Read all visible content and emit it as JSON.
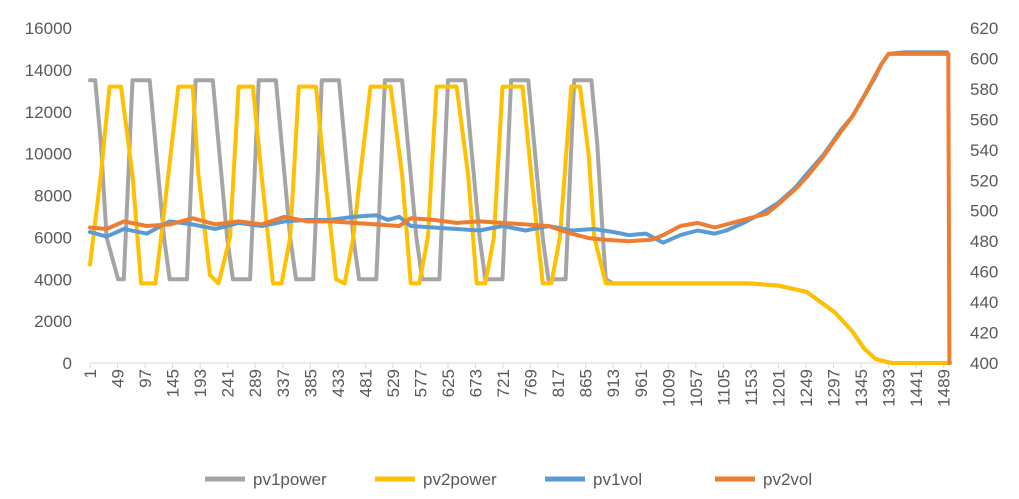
{
  "chart_data": {
    "type": "line",
    "title": "",
    "xlabel": "",
    "ylabel": "",
    "y2label": "",
    "ylim": [
      0,
      16000
    ],
    "y2lim": [
      400,
      620
    ],
    "xlim": [
      1,
      1500
    ],
    "yticks": [
      "0",
      "2000",
      "4000",
      "6000",
      "8000",
      "10000",
      "12000",
      "14000",
      "16000"
    ],
    "y2ticks": [
      "400",
      "420",
      "440",
      "460",
      "480",
      "500",
      "520",
      "540",
      "560",
      "580",
      "600",
      "620"
    ],
    "xticks": [
      "1",
      "49",
      "97",
      "145",
      "193",
      "241",
      "289",
      "337",
      "385",
      "433",
      "481",
      "529",
      "577",
      "625",
      "673",
      "721",
      "769",
      "817",
      "865",
      "913",
      "961",
      "1009",
      "1057",
      "1105",
      "1153",
      "1201",
      "1249",
      "1297",
      "1345",
      "1393",
      "1441",
      "1489"
    ],
    "legend_position": "bottom",
    "grid": false,
    "series": [
      {
        "name": "pv1power",
        "axis": "left",
        "color": "#a5a5a5",
        "x": [
          1,
          10,
          20,
          30,
          50,
          60,
          75,
          85,
          105,
          115,
          130,
          140,
          160,
          170,
          185,
          195,
          215,
          225,
          240,
          250,
          270,
          280,
          295,
          305,
          325,
          335,
          350,
          360,
          380,
          390,
          405,
          415,
          435,
          445,
          460,
          470,
          490,
          500,
          515,
          525,
          545,
          555,
          570,
          580,
          600,
          610,
          625,
          635,
          655,
          665,
          680,
          690,
          710,
          720,
          735,
          745,
          765,
          775,
          790,
          800,
          820,
          830,
          845,
          855,
          875,
          885,
          895,
          900,
          913,
          1150,
          1200,
          1250,
          1300,
          1330,
          1350,
          1370,
          1390,
          1400,
          1500
        ],
        "y": [
          13500,
          13500,
          10500,
          6000,
          4000,
          4000,
          13500,
          13500,
          13500,
          10500,
          6000,
          4000,
          4000,
          4000,
          13500,
          13500,
          13500,
          10500,
          6000,
          4000,
          4000,
          4000,
          13500,
          13500,
          13500,
          10500,
          6000,
          4000,
          4000,
          4000,
          13500,
          13500,
          13500,
          10500,
          6000,
          4000,
          4000,
          4000,
          13500,
          13500,
          13500,
          10500,
          6000,
          4000,
          4000,
          4000,
          13500,
          13500,
          13500,
          10500,
          6000,
          4000,
          4000,
          4000,
          13500,
          13500,
          13500,
          10500,
          6000,
          4000,
          4000,
          4000,
          13500,
          13500,
          13500,
          10500,
          6000,
          4000,
          3800,
          3800,
          3700,
          3400,
          2400,
          1500,
          700,
          200,
          50,
          0,
          0
        ]
      },
      {
        "name": "pv2power",
        "axis": "left",
        "color": "#ffc000",
        "x": [
          1,
          20,
          35,
          45,
          55,
          75,
          90,
          115,
          125,
          155,
          170,
          180,
          190,
          210,
          225,
          245,
          260,
          275,
          285,
          300,
          320,
          335,
          350,
          365,
          380,
          395,
          410,
          430,
          445,
          460,
          470,
          490,
          510,
          525,
          545,
          560,
          575,
          590,
          605,
          625,
          640,
          660,
          675,
          690,
          705,
          720,
          740,
          755,
          770,
          790,
          805,
          820,
          840,
          855,
          870,
          880,
          900,
          913,
          1150,
          1200,
          1250,
          1300,
          1330,
          1350,
          1370,
          1390,
          1400,
          1500
        ],
        "y": [
          4700,
          9000,
          13200,
          13200,
          13200,
          9000,
          3800,
          3800,
          6000,
          13200,
          13200,
          13200,
          9000,
          4200,
          3800,
          6000,
          13200,
          13200,
          13200,
          9000,
          3800,
          3800,
          6000,
          13200,
          13200,
          13200,
          9000,
          4000,
          3800,
          6000,
          8500,
          13200,
          13200,
          13200,
          9000,
          3800,
          3800,
          6000,
          13200,
          13200,
          13200,
          9000,
          3800,
          3800,
          6000,
          13200,
          13200,
          13200,
          9000,
          3800,
          3800,
          6000,
          13200,
          13200,
          10000,
          6000,
          3800,
          3800,
          3800,
          3700,
          3400,
          2400,
          1500,
          700,
          200,
          50,
          0,
          0
        ]
      },
      {
        "name": "pv1vol",
        "axis": "right",
        "color": "#5b9bd5",
        "x": [
          1,
          30,
          60,
          100,
          140,
          180,
          220,
          260,
          300,
          340,
          380,
          420,
          460,
          500,
          520,
          540,
          560,
          600,
          640,
          680,
          720,
          760,
          800,
          840,
          880,
          913,
          940,
          970,
          1000,
          1030,
          1060,
          1090,
          1110,
          1140,
          1170,
          1200,
          1230,
          1250,
          1280,
          1310,
          1330,
          1350,
          1370,
          1380,
          1393,
          1420,
          1450,
          1495
        ],
        "y": [
          486,
          483,
          488,
          485,
          493,
          491,
          488,
          492,
          490,
          493,
          494,
          494,
          496,
          497,
          494,
          496,
          490,
          489,
          488,
          487,
          490,
          487,
          490,
          487,
          488,
          486,
          484,
          485,
          479,
          484,
          487,
          485,
          487,
          492,
          498,
          505,
          515,
          524,
          537,
          553,
          562,
          575,
          588,
          596,
          603,
          604,
          604,
          604
        ]
      },
      {
        "name": "pv2vol",
        "axis": "right",
        "color": "#ed7d31",
        "x": [
          1,
          30,
          60,
          100,
          140,
          180,
          220,
          260,
          300,
          340,
          380,
          420,
          460,
          500,
          540,
          560,
          600,
          640,
          680,
          720,
          760,
          800,
          840,
          870,
          900,
          940,
          980,
          1000,
          1030,
          1060,
          1090,
          1120,
          1150,
          1180,
          1200,
          1230,
          1250,
          1280,
          1310,
          1330,
          1350,
          1370,
          1380,
          1393,
          1420,
          1450,
          1497,
          1499
        ],
        "y": [
          489,
          488,
          493,
          490,
          491,
          495,
          491,
          493,
          491,
          496,
          493,
          493,
          492,
          491,
          490,
          495,
          494,
          492,
          493,
          492,
          491,
          490,
          485,
          482,
          481,
          480,
          481,
          484,
          490,
          492,
          489,
          492,
          495,
          498,
          504,
          514,
          522,
          536,
          552,
          562,
          575,
          589,
          596,
          603,
          603,
          603,
          603,
          400
        ]
      }
    ]
  }
}
